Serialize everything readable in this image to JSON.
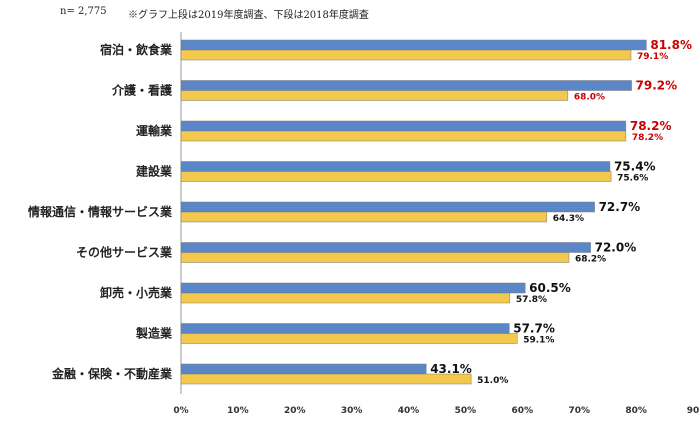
{
  "header": {
    "n_label": "n= 2,775",
    "note": "※グラフ上段は2019年度調査、下段は2018年度調査"
  },
  "colors": {
    "series_2019": "#5B87C9",
    "series_2018": "#F2C94C",
    "highlight_label": "#CC0000",
    "normal_label": "#111111"
  },
  "chart_data": {
    "type": "bar",
    "orientation": "horizontal",
    "categories": [
      "宿泊・飲食業",
      "介護・看護",
      "運輸業",
      "建設業",
      "情報通信・情報サービス業",
      "その他サービス業",
      "卸売・小売業",
      "製造業",
      "金融・保険・不動産業"
    ],
    "series": [
      {
        "values": [
          81.8,
          79.2,
          78.2,
          75.4,
          72.7,
          72.0,
          60.5,
          57.7,
          43.1
        ]
      },
      {
        "values": [
          79.1,
          68.0,
          78.2,
          75.6,
          64.3,
          68.2,
          57.8,
          59.1,
          51.0
        ]
      }
    ],
    "value_labels": [
      [
        "81.8%",
        "79.2%",
        "78.2%",
        "75.4%",
        "72.7%",
        "72.0%",
        "60.5%",
        "57.7%",
        "43.1%"
      ],
      [
        "79.1%",
        "68.0%",
        "78.2%",
        "75.6%",
        "64.3%",
        "68.2%",
        "57.8%",
        "59.1%",
        "51.0%"
      ]
    ],
    "highlighted_categories": [
      0,
      1,
      2
    ],
    "xlim": [
      0,
      90
    ],
    "x_ticks": [
      0,
      10,
      20,
      30,
      40,
      50,
      60,
      70,
      80,
      90
    ],
    "x_tick_labels": [
      "0%",
      "10%",
      "20%",
      "30%",
      "40%",
      "50%",
      "60%",
      "70%",
      "80%",
      "90"
    ],
    "title": "",
    "xlabel": "",
    "ylabel": "",
    "grid": false
  }
}
